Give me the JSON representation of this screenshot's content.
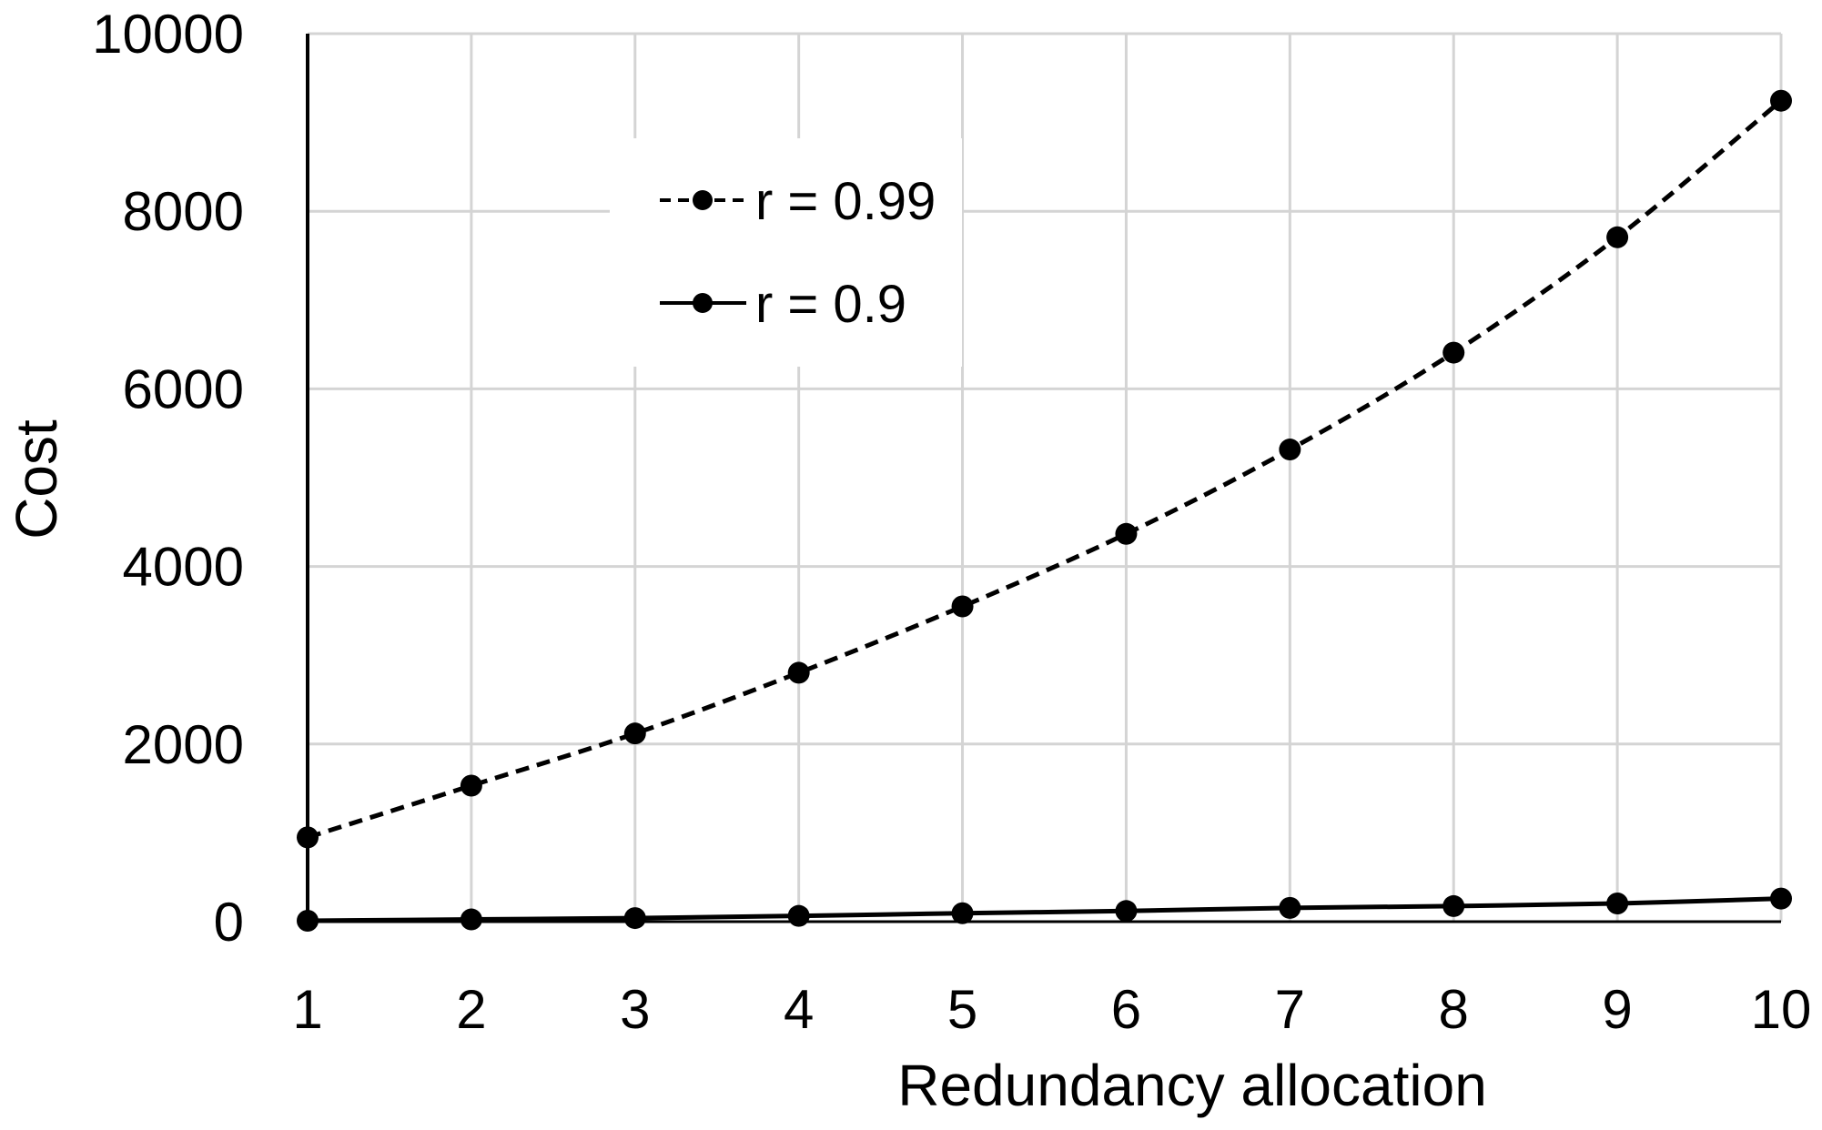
{
  "chart_data": {
    "type": "line",
    "title": "",
    "xlabel": "Redundancy allocation",
    "ylabel": "Cost",
    "x": [
      1,
      2,
      3,
      4,
      5,
      6,
      7,
      8,
      9,
      10
    ],
    "xticks": [
      "1",
      "2",
      "3",
      "4",
      "5",
      "6",
      "7",
      "8",
      "9",
      "10"
    ],
    "yticks": [
      "0",
      "2000",
      "4000",
      "6000",
      "8000",
      "10000"
    ],
    "ylim": [
      0,
      10000
    ],
    "xlim": [
      1,
      10
    ],
    "grid": true,
    "legend_position": "upper-left-inside",
    "series": [
      {
        "name": "r = 0.99",
        "style": "dashed",
        "marker": "circle",
        "color": "#000000",
        "values": [
          949,
          1532,
          2119,
          2803,
          3550,
          4367,
          5317,
          6408,
          7707,
          9245
        ]
      },
      {
        "name": "r = 0.9",
        "style": "solid",
        "marker": "circle",
        "color": "#000000",
        "values": [
          10,
          25,
          40,
          65,
          95,
          120,
          155,
          175,
          205,
          260
        ]
      }
    ]
  },
  "colors": {
    "grid": "#d4d4d4",
    "axis": "#000000",
    "series": "#000000",
    "background": "#ffffff"
  }
}
